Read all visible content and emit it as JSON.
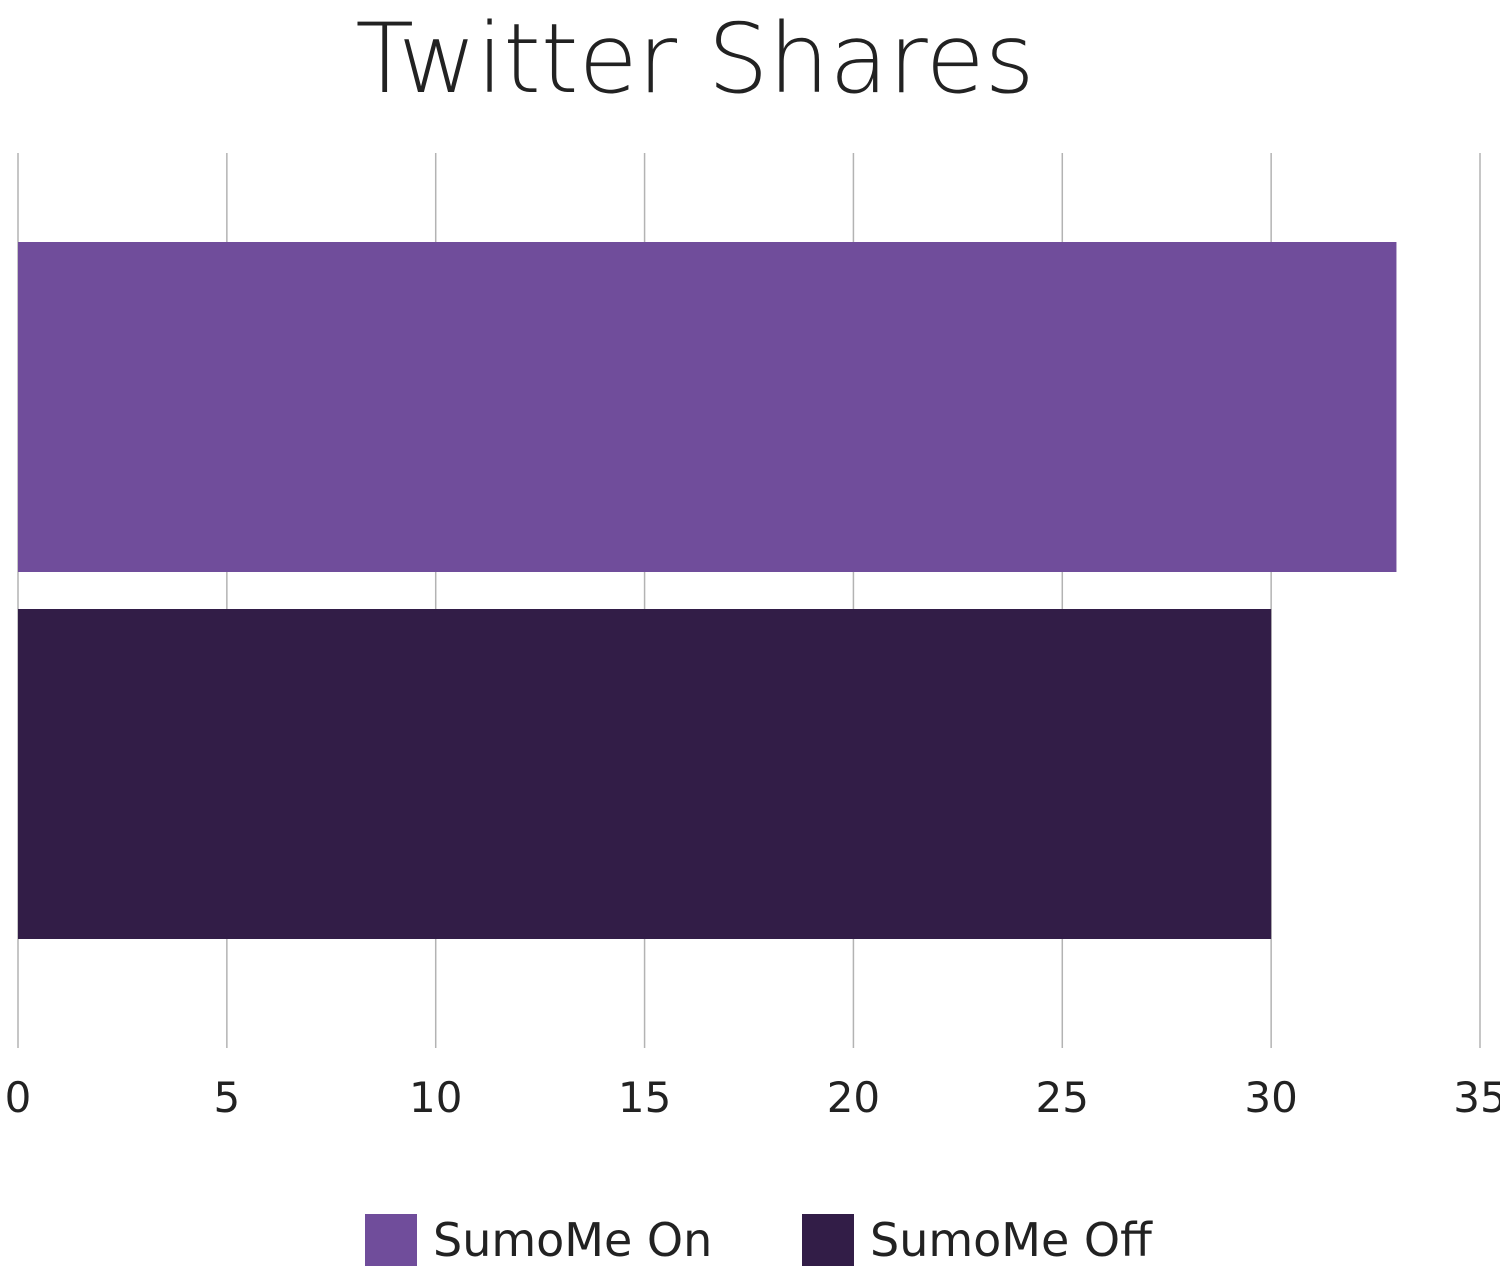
{
  "chart_data": {
    "type": "bar",
    "orientation": "horizontal",
    "title": "Twitter Shares",
    "xlabel": "",
    "ylabel": "",
    "xlim": [
      0,
      35
    ],
    "x_ticks": [
      "0",
      "5",
      "10",
      "15",
      "20",
      "25",
      "30",
      "35"
    ],
    "grid": true,
    "legend_position": "bottom",
    "series": [
      {
        "name": "SumoMe On",
        "value": 33,
        "color": "#704D9B"
      },
      {
        "name": "SumoMe Off",
        "value": 30,
        "color": "#321D47"
      }
    ]
  }
}
